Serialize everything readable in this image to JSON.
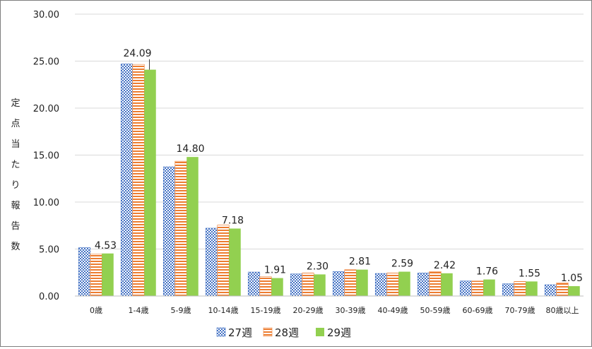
{
  "chart_data": {
    "type": "bar",
    "ylabel": "定点当たり報告数",
    "ylim": [
      0,
      30
    ],
    "yticks": [
      "0.00",
      "5.00",
      "10.00",
      "15.00",
      "20.00",
      "25.00",
      "30.00"
    ],
    "grid": true,
    "legend": "bottom",
    "categories": [
      "0歳",
      "1-4歳",
      "5-9歳",
      "10-14歳",
      "15-19歳",
      "20-29歳",
      "30-39歳",
      "40-49歳",
      "50-59歳",
      "60-69歳",
      "70-79歳",
      "80歳以上"
    ],
    "series": [
      {
        "name": "27週",
        "color": "#4472c4",
        "pattern": "dots",
        "values": [
          5.15,
          24.7,
          13.75,
          7.22,
          2.55,
          2.35,
          2.6,
          2.4,
          2.45,
          1.6,
          1.3,
          1.2
        ]
      },
      {
        "name": "28週",
        "color": "#ed7d31",
        "pattern": "horizontal-stripes",
        "values": [
          4.45,
          24.65,
          14.35,
          7.55,
          2.05,
          2.45,
          2.8,
          2.45,
          2.6,
          1.6,
          1.55,
          1.4
        ]
      },
      {
        "name": "29週",
        "color": "#92d050",
        "pattern": "solid",
        "values": [
          4.53,
          24.09,
          14.8,
          7.18,
          1.91,
          2.3,
          2.81,
          2.59,
          2.42,
          1.76,
          1.55,
          1.05
        ],
        "labels": [
          "4.53",
          "24.09",
          "14.80",
          "7.18",
          "1.91",
          "2.30",
          "2.81",
          "2.59",
          "2.42",
          "1.76",
          "1.55",
          "1.05"
        ]
      }
    ]
  }
}
